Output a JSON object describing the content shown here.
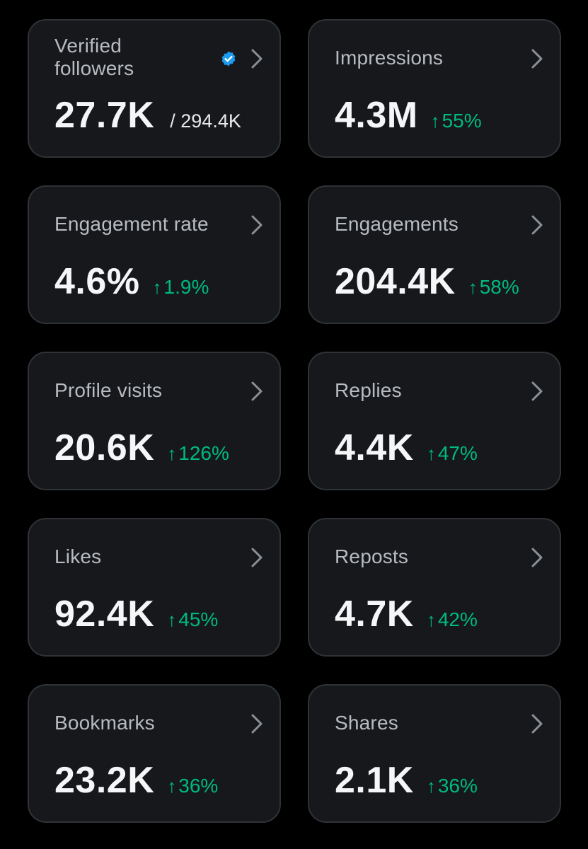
{
  "colors": {
    "background": "#000000",
    "card": "#16181c",
    "card_border": "#2f3336",
    "label": "#b8bcc0",
    "value": "#f5f6f7",
    "positive": "#00ba7c",
    "verified_badge": "#1d9bf0"
  },
  "icons": {
    "chevron": "chevron-right-icon",
    "verified": "verified-badge-icon",
    "delta": "arrow-up-icon"
  },
  "cards": {
    "verified_followers": {
      "label": "Verified followers",
      "value": "27.7K",
      "total": "/ 294.4K"
    },
    "impressions": {
      "label": "Impressions",
      "value": "4.3M",
      "arrow": "↑",
      "change": "55%"
    },
    "engagement_rate": {
      "label": "Engagement rate",
      "value": "4.6%",
      "arrow": "↑",
      "change": "1.9%"
    },
    "engagements": {
      "label": "Engagements",
      "value": "204.4K",
      "arrow": "↑",
      "change": "58%"
    },
    "profile_visits": {
      "label": "Profile visits",
      "value": "20.6K",
      "arrow": "↑",
      "change": "126%"
    },
    "replies": {
      "label": "Replies",
      "value": "4.4K",
      "arrow": "↑",
      "change": "47%"
    },
    "likes": {
      "label": "Likes",
      "value": "92.4K",
      "arrow": "↑",
      "change": "45%"
    },
    "reposts": {
      "label": "Reposts",
      "value": "4.7K",
      "arrow": "↑",
      "change": "42%"
    },
    "bookmarks": {
      "label": "Bookmarks",
      "value": "23.2K",
      "arrow": "↑",
      "change": "36%"
    },
    "shares": {
      "label": "Shares",
      "value": "2.1K",
      "arrow": "↑",
      "change": "36%"
    }
  }
}
